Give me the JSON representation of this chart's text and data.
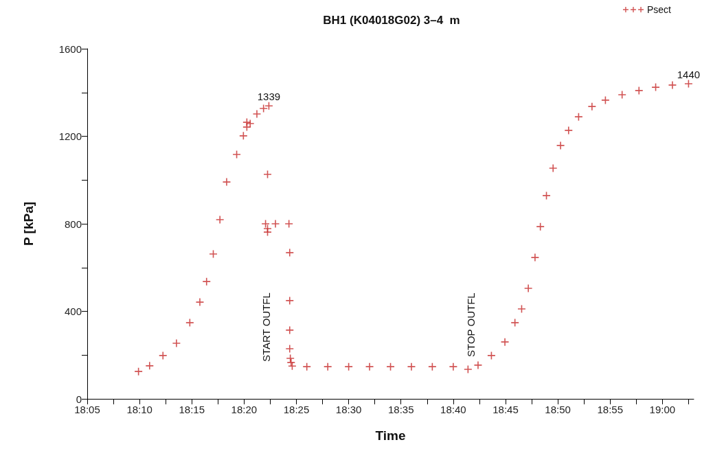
{
  "chart_data": {
    "type": "scatter",
    "title": "BH1 (K04018G02) 3–4  m",
    "xlabel": "Time",
    "ylabel": "P [kPa]",
    "xlim": [
      18.0833,
      19.05
    ],
    "xticks": [
      {
        "value": 18.0833,
        "label": "18:05"
      },
      {
        "value": 18.125,
        "label": null
      },
      {
        "value": 18.1667,
        "label": "18:10"
      },
      {
        "value": 18.2083,
        "label": null
      },
      {
        "value": 18.25,
        "label": "18:15"
      },
      {
        "value": 18.2917,
        "label": null
      },
      {
        "value": 18.3333,
        "label": "18:20"
      },
      {
        "value": 18.375,
        "label": null
      },
      {
        "value": 18.4167,
        "label": "18:25"
      },
      {
        "value": 18.4583,
        "label": null
      },
      {
        "value": 18.5,
        "label": "18:30"
      },
      {
        "value": 18.5417,
        "label": null
      },
      {
        "value": 18.5833,
        "label": "18:35"
      },
      {
        "value": 18.625,
        "label": null
      },
      {
        "value": 18.6667,
        "label": "18:40"
      },
      {
        "value": 18.7083,
        "label": null
      },
      {
        "value": 18.75,
        "label": "18:45"
      },
      {
        "value": 18.7917,
        "label": null
      },
      {
        "value": 18.8333,
        "label": "18:50"
      },
      {
        "value": 18.875,
        "label": null
      },
      {
        "value": 18.9167,
        "label": "18:55"
      },
      {
        "value": 18.9583,
        "label": null
      },
      {
        "value": 19.0,
        "label": "19:00"
      },
      {
        "value": 19.0417,
        "label": null
      }
    ],
    "ylim": [
      0,
      1600
    ],
    "yticks": [
      0,
      {
        "value": 200,
        "label": null
      },
      400,
      {
        "value": 600,
        "label": null
      },
      800,
      {
        "value": 1000,
        "label": null
      },
      1200,
      {
        "value": 1400,
        "label": null
      },
      1600
    ],
    "marker": "cross",
    "grid": false,
    "legend": "top right",
    "series": [
      {
        "name": "Psect",
        "color": "#c62828",
        "x": [
          18.165,
          18.1827,
          18.204,
          18.2255,
          18.2468,
          18.2628,
          18.2735,
          18.2842,
          18.2948,
          18.3055,
          18.3215,
          18.3322,
          18.343,
          18.3537,
          18.3643,
          18.3728,
          18.3377,
          18.3377,
          18.3707,
          18.3707,
          18.3707,
          18.3675,
          18.3833,
          18.4048,
          18.406,
          18.406,
          18.406,
          18.406,
          18.407,
          18.4082,
          18.41,
          18.4333,
          18.4667,
          18.5,
          18.5333,
          18.5667,
          18.6,
          18.6333,
          18.6667,
          18.6902,
          18.7062,
          18.7275,
          18.749,
          18.765,
          18.7757,
          18.7863,
          18.797,
          18.8055,
          18.8152,
          18.8258,
          18.8377,
          18.8505,
          18.8665,
          18.8878,
          18.9092,
          18.9358,
          18.9627,
          18.9893,
          19.016,
          19.0417
        ],
        "values": [
          125,
          151,
          198,
          254,
          348,
          442,
          536,
          662,
          819,
          991,
          1117,
          1202,
          1258,
          1302,
          1327,
          1339,
          1264,
          1242,
          1026,
          778,
          762,
          800,
          800,
          800,
          668,
          449,
          314,
          229,
          185,
          166,
          150,
          147,
          147,
          147,
          147,
          147,
          147,
          147,
          147,
          135,
          154,
          198,
          260,
          348,
          411,
          505,
          646,
          787,
          929,
          1054,
          1158,
          1227,
          1289,
          1336,
          1365,
          1390,
          1409,
          1424,
          1434,
          1440
        ]
      }
    ],
    "annotations": [
      {
        "text": "1339",
        "x": 18.3728,
        "y": 1339
      },
      {
        "text": "1440",
        "x": 19.0417,
        "y": 1440
      },
      "START OUTFL",
      "STOP OUTFL"
    ]
  }
}
